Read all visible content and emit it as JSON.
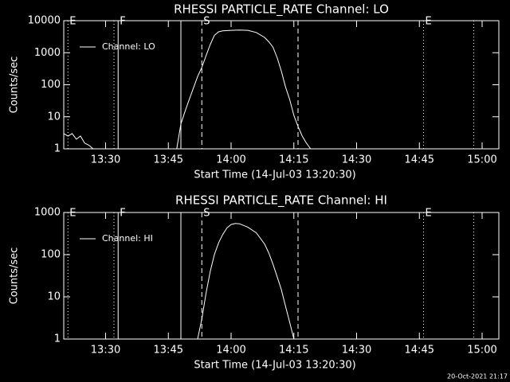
{
  "chart_data": [
    {
      "type": "line",
      "title": "RHESSI PARTICLE_RATE Channel: LO",
      "xlabel": "Start Time (14-Jul-03 13:20:30)",
      "ylabel": "Counts/sec",
      "log_y": true,
      "xlim": [
        "13:20",
        "15:04"
      ],
      "xticks": [
        "13:30",
        "13:45",
        "14:00",
        "14:15",
        "14:30",
        "14:45",
        "15:00"
      ],
      "ylim": [
        1,
        10000
      ],
      "yticks": [
        1,
        10,
        100,
        1000,
        10000
      ],
      "legend": "upper left",
      "events": [
        {
          "x": "13:21",
          "label": "E",
          "style": "dotted"
        },
        {
          "x": "13:32",
          "style": "dotted"
        },
        {
          "x": "13:33",
          "label": "F",
          "style": "solid"
        },
        {
          "x": "13:48",
          "style": "solid"
        },
        {
          "x": "13:53",
          "label": "S",
          "style": "dashed"
        },
        {
          "x": "14:16",
          "style": "dashed"
        },
        {
          "x": "14:46",
          "label": "E",
          "style": "dotted"
        },
        {
          "x": "14:58",
          "style": "dotted"
        }
      ],
      "x": [
        "13:20",
        "13:21",
        "13:22",
        "13:23",
        "13:24",
        "13:25",
        "13:26",
        "13:27",
        "13:28",
        "13:47",
        "13:48",
        "13:49",
        "13:50",
        "13:51",
        "13:52",
        "13:53",
        "13:54",
        "13:55",
        "13:56",
        "13:57",
        "13:58",
        "14:00",
        "14:02",
        "14:04",
        "14:06",
        "14:08",
        "14:09",
        "14:10",
        "14:11",
        "14:12",
        "14:13",
        "14:14",
        "14:15",
        "14:16",
        "14:17",
        "14:18",
        "14:19"
      ],
      "series": [
        {
          "name": "Channel: LO",
          "color": "#ffffff",
          "values": [
            3,
            2.5,
            3,
            2,
            2.5,
            1.5,
            1.3,
            1,
            null,
            1,
            6,
            15,
            35,
            80,
            180,
            350,
            800,
            1800,
            3500,
            4500,
            4800,
            5000,
            5100,
            5000,
            4300,
            3000,
            2200,
            1500,
            700,
            270,
            85,
            35,
            11,
            5,
            2.5,
            1.5,
            1
          ]
        }
      ]
    },
    {
      "type": "line",
      "title": "RHESSI PARTICLE_RATE Channel: HI",
      "xlabel": "Start Time (14-Jul-03 13:20:30)",
      "ylabel": "Counts/sec",
      "log_y": true,
      "xlim": [
        "13:20",
        "15:04"
      ],
      "xticks": [
        "13:30",
        "13:45",
        "14:00",
        "14:15",
        "14:30",
        "14:45",
        "15:00"
      ],
      "ylim": [
        1,
        1000
      ],
      "yticks": [
        1,
        10,
        100,
        1000
      ],
      "legend": "upper left",
      "events": [
        {
          "x": "13:21",
          "label": "E",
          "style": "dotted"
        },
        {
          "x": "13:32",
          "style": "dotted"
        },
        {
          "x": "13:33",
          "label": "F",
          "style": "solid"
        },
        {
          "x": "13:48",
          "style": "solid"
        },
        {
          "x": "13:53",
          "label": "S",
          "style": "dashed"
        },
        {
          "x": "14:16",
          "style": "dashed"
        },
        {
          "x": "14:46",
          "label": "E",
          "style": "dotted"
        },
        {
          "x": "14:58",
          "style": "dotted"
        }
      ],
      "x": [
        "13:52",
        "13:53",
        "13:54",
        "13:55",
        "13:56",
        "13:57",
        "13:58",
        "13:59",
        "14:00",
        "14:01",
        "14:02",
        "14:04",
        "14:06",
        "14:08",
        "14:09",
        "14:10",
        "14:11",
        "14:12",
        "14:13",
        "14:14",
        "14:15"
      ],
      "series": [
        {
          "name": "Channel: HI",
          "color": "#ffffff",
          "values": [
            1,
            3,
            12,
            40,
            100,
            190,
            300,
            430,
            520,
            550,
            540,
            450,
            330,
            180,
            110,
            60,
            30,
            15,
            6,
            2.5,
            1
          ]
        }
      ]
    }
  ],
  "footer": "20-Oct-2021 21:17"
}
